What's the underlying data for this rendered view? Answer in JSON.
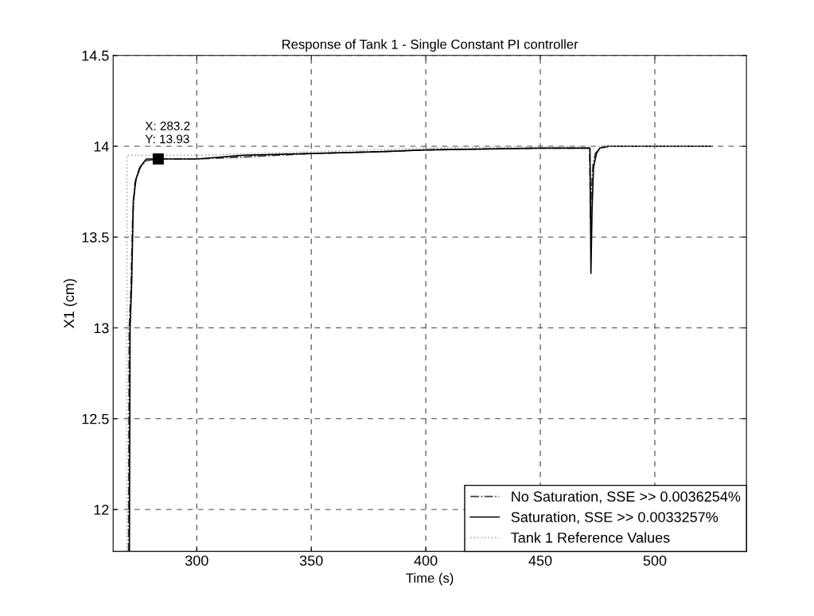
{
  "chart_data": {
    "type": "line",
    "title": "Response of Tank 1 - Single Constant PI controller",
    "xlabel": "Time (s)",
    "ylabel": "X1 (cm)",
    "xlim": [
      263.5,
      540
    ],
    "ylim": [
      11.77,
      14.5
    ],
    "xticks": [
      300,
      350,
      400,
      450,
      500
    ],
    "yticks": [
      12,
      12.5,
      13,
      13.5,
      14,
      14.5
    ],
    "grid": true,
    "legend": "bottom right",
    "marker": "none",
    "annotations": [
      {
        "text": "X: 283.2\nY: 13.93",
        "x": 283.2,
        "y": 13.93
      }
    ],
    "series": [
      {
        "name": "No Saturation, SSE >> 0.0036254%",
        "color": "#404040",
        "line_style": "dashed",
        "x": [
          270.2,
          270.5,
          271.2,
          272,
          273,
          275,
          278,
          283.2,
          300,
          320,
          350,
          380,
          400,
          450,
          471.5,
          471.9,
          472.3,
          473,
          474,
          476,
          480,
          525
        ],
        "values": [
          11.77,
          13.0,
          13.2,
          13.6,
          13.8,
          13.88,
          13.92,
          13.93,
          13.93,
          13.94,
          13.96,
          13.97,
          13.98,
          13.99,
          13.99,
          13.6,
          13.75,
          13.9,
          13.96,
          13.99,
          14.0,
          14.0
        ]
      },
      {
        "name": "Saturation, SSE >> 0.0033257%",
        "color": "#000000",
        "line_style": "solid",
        "x": [
          270.6,
          270.9,
          271.6,
          272.3,
          273.5,
          275.5,
          278,
          283.2,
          300,
          320,
          350,
          380,
          400,
          450,
          471.7,
          472.1,
          472.6,
          473.2,
          474.5,
          476,
          480,
          525
        ],
        "values": [
          11.77,
          13.0,
          13.25,
          13.7,
          13.82,
          13.89,
          13.93,
          13.93,
          13.93,
          13.95,
          13.96,
          13.97,
          13.98,
          13.99,
          13.99,
          13.3,
          13.65,
          13.88,
          13.96,
          13.99,
          14.0,
          14.0
        ]
      },
      {
        "name": "Tank 1 Reference Values",
        "color": "#b0b0b0",
        "line_style": "dotted",
        "x": [
          269.5,
          269.5,
          300,
          350,
          400,
          470,
          525
        ],
        "values": [
          11.77,
          13.95,
          13.95,
          13.97,
          13.99,
          14.0,
          14.0
        ]
      }
    ]
  }
}
